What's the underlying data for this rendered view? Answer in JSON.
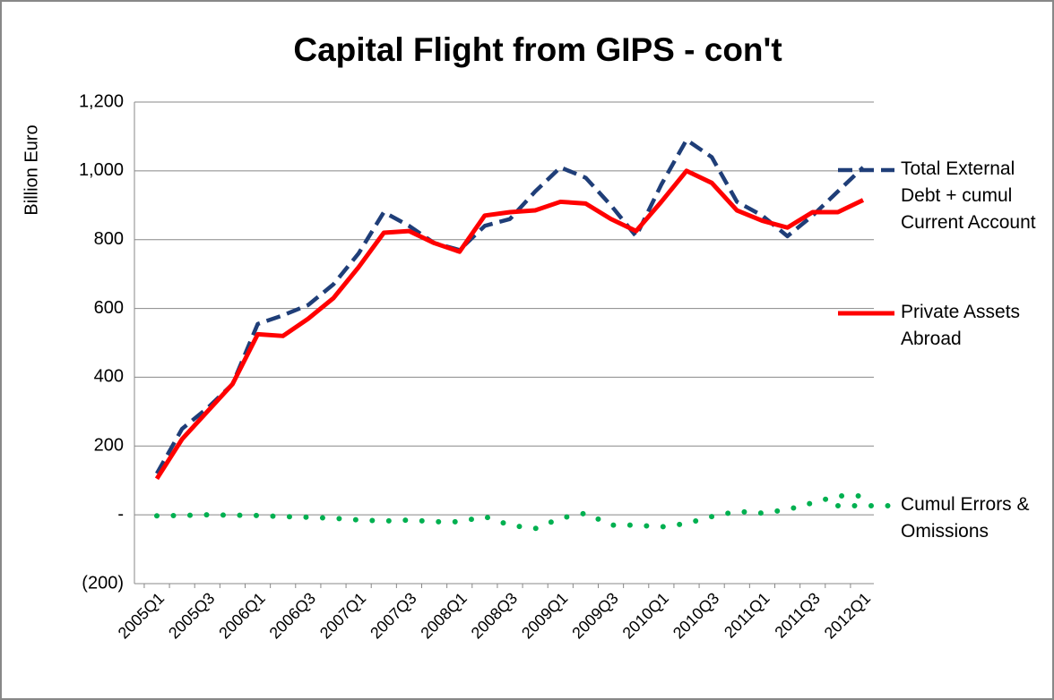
{
  "chart_data": {
    "type": "line",
    "title": "Capital Flight from GIPS - con't",
    "y_label": "Billion Euro",
    "categories": [
      "2005Q1",
      null,
      "2005Q3",
      null,
      "2006Q1",
      null,
      "2006Q3",
      null,
      "2007Q1",
      null,
      "2007Q3",
      null,
      "2008Q1",
      null,
      "2008Q3",
      null,
      "2009Q1",
      null,
      "2009Q3",
      null,
      "2010Q1",
      null,
      "2010Q3",
      null,
      "2011Q1",
      null,
      "2011Q3",
      null,
      "2012Q1"
    ],
    "series": [
      {
        "name": "Total External Debt + cumul Current Account",
        "color": "#1f3e78",
        "dash": "dashed",
        "values": [
          120,
          250,
          310,
          380,
          555,
          580,
          610,
          670,
          760,
          880,
          840,
          790,
          770,
          840,
          860,
          940,
          1010,
          980,
          900,
          810,
          960,
          1090,
          1040,
          910,
          870,
          810,
          870,
          940,
          1010
        ]
      },
      {
        "name": "Private Assets Abroad",
        "color": "#ff0000",
        "dash": "solid",
        "values": [
          105,
          220,
          300,
          380,
          525,
          520,
          570,
          630,
          720,
          820,
          825,
          790,
          765,
          870,
          880,
          885,
          910,
          905,
          860,
          825,
          910,
          1000,
          965,
          885,
          855,
          835,
          880,
          880,
          915
        ]
      },
      {
        "name": "Cumul Errors & Omissions",
        "color": "#00b050",
        "dash": "dotted",
        "values": [
          -3,
          -2,
          0,
          -1,
          -2,
          -5,
          -7,
          -10,
          -15,
          -18,
          -15,
          -20,
          -20,
          -5,
          -30,
          -40,
          -10,
          5,
          -30,
          -30,
          -35,
          -25,
          -5,
          10,
          5,
          15,
          35,
          55,
          55
        ]
      }
    ],
    "ylim": [
      -200,
      1200
    ],
    "yticks": [
      {
        "value": -200,
        "label": "(200)"
      },
      {
        "value": 0,
        "label": "-"
      },
      200,
      400,
      600,
      800,
      {
        "value": 1000,
        "label": "1,000"
      },
      {
        "value": 1200,
        "label": "1,200"
      }
    ],
    "grid": true,
    "legend": "right"
  }
}
